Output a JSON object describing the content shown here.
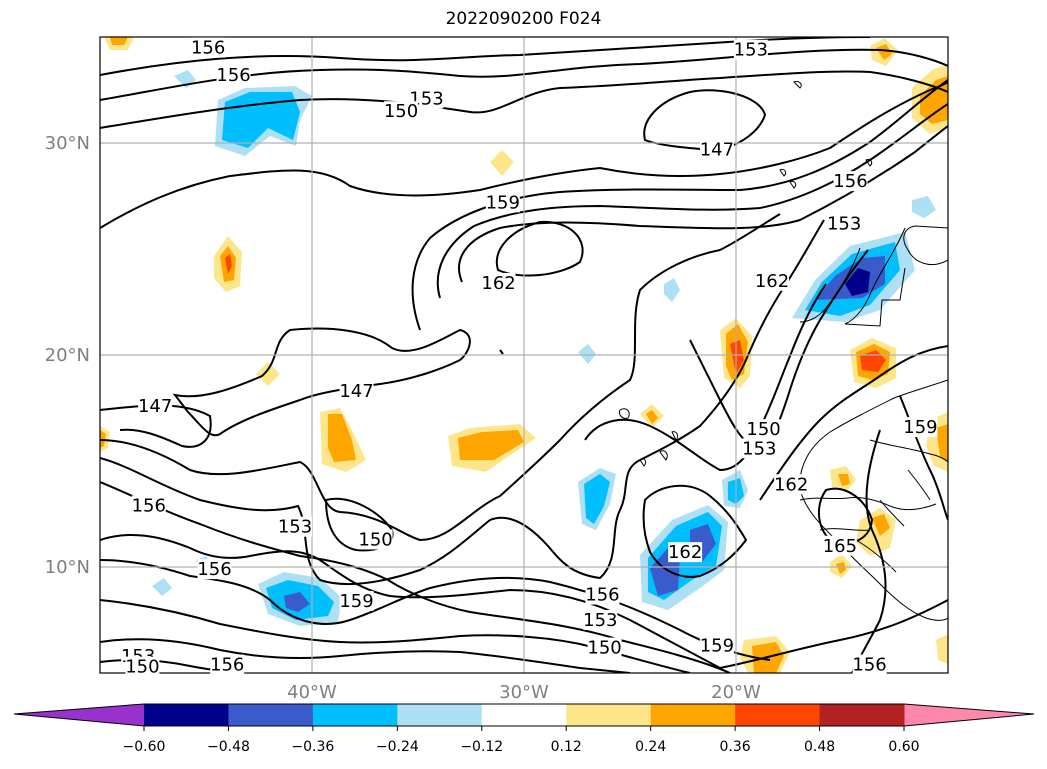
{
  "title": "2022090200 F024",
  "map": {
    "lon_range": [
      -50,
      -10
    ],
    "lat_range": [
      5,
      35
    ],
    "lon_ticks": [
      {
        "value": -40,
        "label": "40°W"
      },
      {
        "value": -30,
        "label": "30°W"
      },
      {
        "value": -20,
        "label": "20°W"
      }
    ],
    "lat_ticks": [
      {
        "value": 30,
        "label": "30°N"
      },
      {
        "value": 20,
        "label": "20°N"
      },
      {
        "value": 10,
        "label": "10°N"
      }
    ],
    "grid": true
  },
  "contour_labels": [
    {
      "text": "156",
      "lon": -44.9,
      "lat": 34.5
    },
    {
      "text": "156",
      "lon": -43.7,
      "lat": 33.2
    },
    {
      "text": "153",
      "lon": -19.3,
      "lat": 34.4
    },
    {
      "text": "153",
      "lon": -34.6,
      "lat": 32.1
    },
    {
      "text": "150",
      "lon": -35.8,
      "lat": 31.5
    },
    {
      "text": "147",
      "lon": -20.9,
      "lat": 29.7
    },
    {
      "text": "156",
      "lon": -14.6,
      "lat": 28.2
    },
    {
      "text": "159",
      "lon": -31.0,
      "lat": 27.2
    },
    {
      "text": "153",
      "lon": -14.9,
      "lat": 26.2
    },
    {
      "text": "162",
      "lon": -31.2,
      "lat": 23.4
    },
    {
      "text": "162",
      "lon": -18.3,
      "lat": 23.5
    },
    {
      "text": "147",
      "lon": -37.9,
      "lat": 18.3
    },
    {
      "text": "147",
      "lon": -47.4,
      "lat": 17.6
    },
    {
      "text": "150",
      "lon": -18.7,
      "lat": 16.5
    },
    {
      "text": "153",
      "lon": -18.9,
      "lat": 15.6
    },
    {
      "text": "159",
      "lon": -11.3,
      "lat": 16.6
    },
    {
      "text": "162",
      "lon": -17.4,
      "lat": 13.9
    },
    {
      "text": "156",
      "lon": -47.7,
      "lat": 12.9
    },
    {
      "text": "153",
      "lon": -40.8,
      "lat": 11.9
    },
    {
      "text": "150",
      "lon": -37.0,
      "lat": 11.3
    },
    {
      "text": "165",
      "lon": -15.1,
      "lat": 11.0
    },
    {
      "text": "162",
      "lon": -22.4,
      "lat": 10.7
    },
    {
      "text": "156",
      "lon": -44.6,
      "lat": 9.9
    },
    {
      "text": "159",
      "lon": -37.9,
      "lat": 8.4
    },
    {
      "text": "156",
      "lon": -26.3,
      "lat": 8.7
    },
    {
      "text": "153",
      "lon": -26.4,
      "lat": 7.5
    },
    {
      "text": "150",
      "lon": -26.2,
      "lat": 6.2
    },
    {
      "text": "159",
      "lon": -20.9,
      "lat": 6.3
    },
    {
      "text": "153",
      "lon": -48.2,
      "lat": 5.8
    },
    {
      "text": "150",
      "lon": -48.0,
      "lat": 5.3
    },
    {
      "text": "156",
      "lon": -44.0,
      "lat": 5.4
    },
    {
      "text": "156",
      "lon": -13.7,
      "lat": 5.4
    }
  ],
  "colorbar": {
    "ticks": [
      "−0.60",
      "−0.48",
      "−0.36",
      "−0.24",
      "−0.12",
      "0.12",
      "0.24",
      "0.36",
      "0.48",
      "0.60"
    ],
    "under_color": "#9932CC",
    "over_color": "#FF88AA",
    "colors": [
      "#00008B",
      "#3A5BCC",
      "#00BFFF",
      "#ADDFF5",
      "#FFFFFF",
      "#FDE68A",
      "#FFA500",
      "#FF4500",
      "#B22222"
    ]
  }
}
